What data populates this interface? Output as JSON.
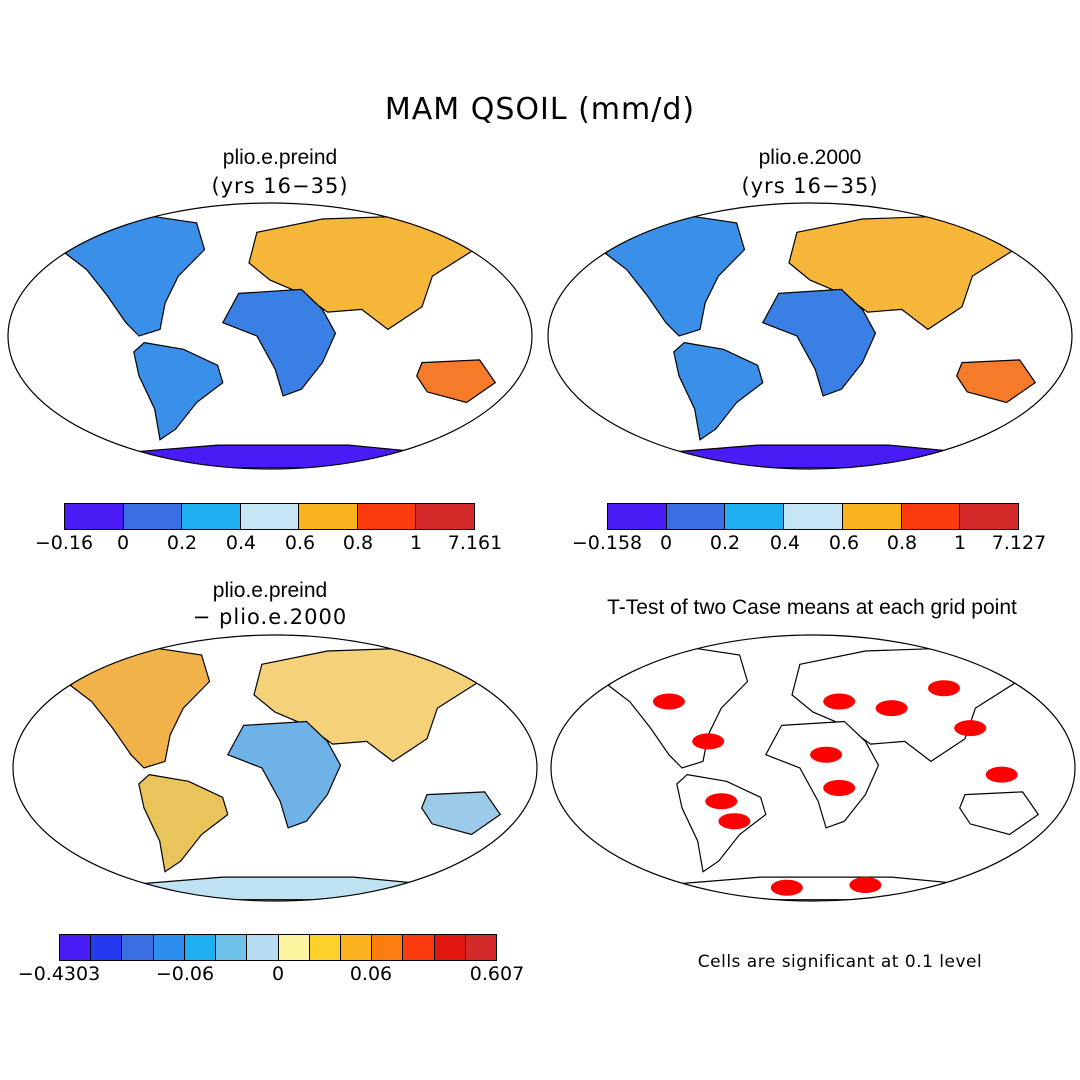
{
  "title": "MAM QSOIL (mm/d)",
  "panels": [
    {
      "title": "plio.e.preind",
      "subtitle": "(yrs 16−35)"
    },
    {
      "title": "plio.e.2000",
      "subtitle": "(yrs 16−35)"
    },
    {
      "title": "plio.e.preind",
      "subtitle": "− plio.e.2000"
    },
    {
      "title": "T-Test of two Case means at each grid point",
      "subtitle": ""
    }
  ],
  "colorbars": [
    {
      "colors": [
        "#4a1cf5",
        "#3a6fe3",
        "#1fb0f2",
        "#c6e6f5",
        "#fbb21f",
        "#fb3a10",
        "#d42a2a"
      ],
      "ticks": [
        "−0.16",
        "0",
        "0.2",
        "0.4",
        "0.6",
        "0.8",
        "1",
        "7.161"
      ]
    },
    {
      "colors": [
        "#4a1cf5",
        "#3a6fe3",
        "#1fb0f2",
        "#c6e6f5",
        "#fbb21f",
        "#fb3a10",
        "#d42a2a"
      ],
      "ticks": [
        "−0.158",
        "0",
        "0.2",
        "0.4",
        "0.6",
        "0.8",
        "1",
        "7.127"
      ]
    },
    {
      "colors": [
        "#4a1cf5",
        "#2439f0",
        "#3a6fe3",
        "#2d8ef0",
        "#1fb0f2",
        "#6fc3ea",
        "#b5dcf0",
        "#fdf5a0",
        "#fcd12a",
        "#fbb21f",
        "#fb7d10",
        "#fb3a10",
        "#e0160f",
        "#d42a2a"
      ],
      "ticks": [
        "−0.4303",
        "−0.06",
        "0",
        "0.06",
        "0.607"
      ]
    }
  ],
  "note": "Cells are significant at 0.1 level"
}
